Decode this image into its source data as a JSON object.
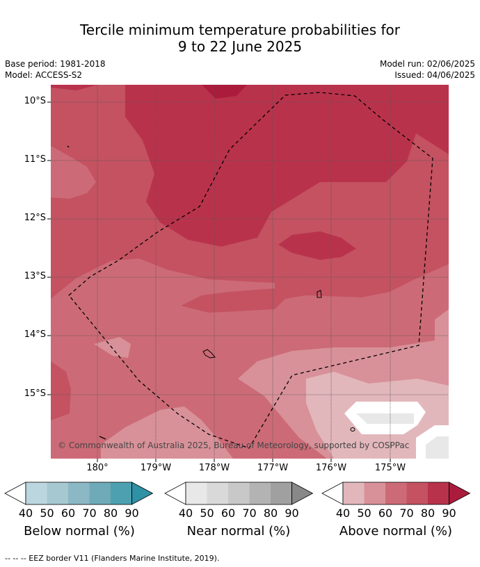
{
  "header": {
    "title_line1": "Tercile minimum temperature probabilities for",
    "title_line2": "9 to 22 June 2025",
    "base_period": "Base period: 1981-2018",
    "model": "Model: ACCESS-S2",
    "model_run": "Model run: 02/06/2025",
    "issued": "Issued: 04/06/2025"
  },
  "map": {
    "lat_labels": [
      "10°S",
      "11°S",
      "12°S",
      "13°S",
      "14°S",
      "15°S"
    ],
    "lon_labels": [
      "180°",
      "179°W",
      "178°W",
      "177°W",
      "176°W",
      "175°W"
    ],
    "copyright": "© Commonwealth of Australia 2025, Bureau of Meteorology, supported by COSPPac",
    "colors": {
      "above_70": "#c45261",
      "above_80": "#b9324c",
      "above_60": "#cc6b77",
      "above_50": "#d89199",
      "above_40": "#e2b7bb",
      "grid": "#555555"
    }
  },
  "colorbars": {
    "ticks": [
      "40",
      "50",
      "60",
      "70",
      "80",
      "90"
    ],
    "below": {
      "label": "Below normal (%)",
      "colors": [
        "#bcd6df",
        "#a6c8d1",
        "#8cb8c5",
        "#6faab9",
        "#4da0b0",
        "#2f91a5"
      ]
    },
    "near": {
      "label": "Near normal (%)",
      "colors": [
        "#e8e8e8",
        "#d9d9d9",
        "#c8c8c8",
        "#b3b3b3",
        "#a0a0a0",
        "#888888"
      ]
    },
    "above": {
      "label": "Above normal (%)",
      "colors": [
        "#e2b7bb",
        "#d89199",
        "#cc6b77",
        "#c45261",
        "#b9324c",
        "#ab1c3c"
      ]
    }
  },
  "footer": {
    "eez_note": "--  --  -- EEZ border V11 (Flanders Marine Institute, 2019)."
  }
}
